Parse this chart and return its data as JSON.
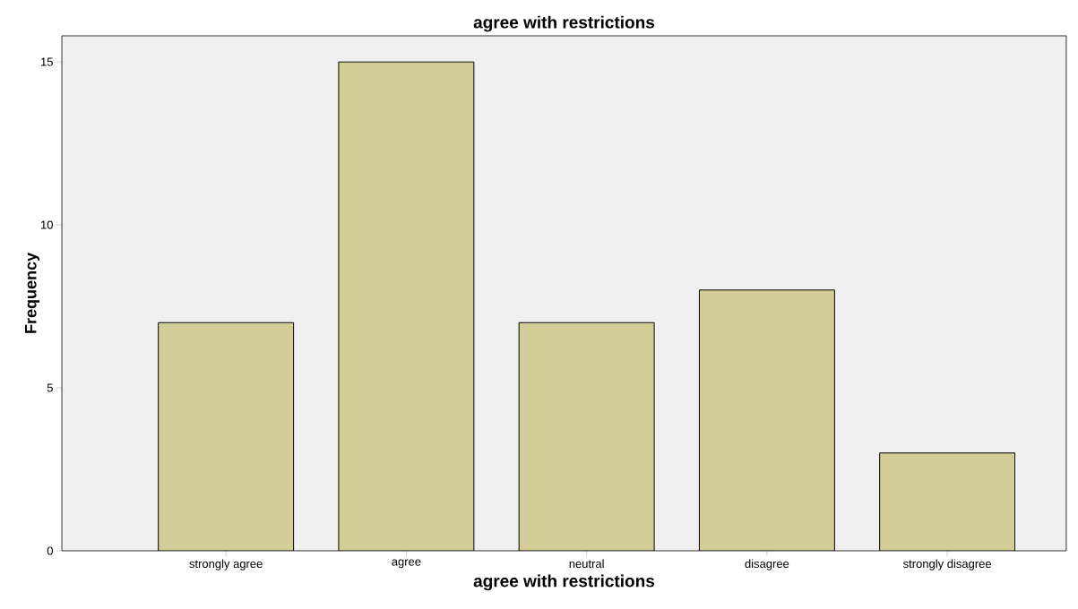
{
  "chart_data": {
    "type": "bar",
    "title": "agree with restrictions",
    "xlabel": "agree with restrictions",
    "ylabel": "Frequency",
    "categories": [
      "strongly agree",
      "agree",
      "neutral",
      "disagree",
      "strongly disagree"
    ],
    "values": [
      7,
      15,
      7,
      8,
      3
    ],
    "color": "#d3cd98",
    "ylim": [
      0,
      15.8
    ],
    "yticks": [
      0,
      5,
      10,
      15
    ],
    "grid": false
  }
}
